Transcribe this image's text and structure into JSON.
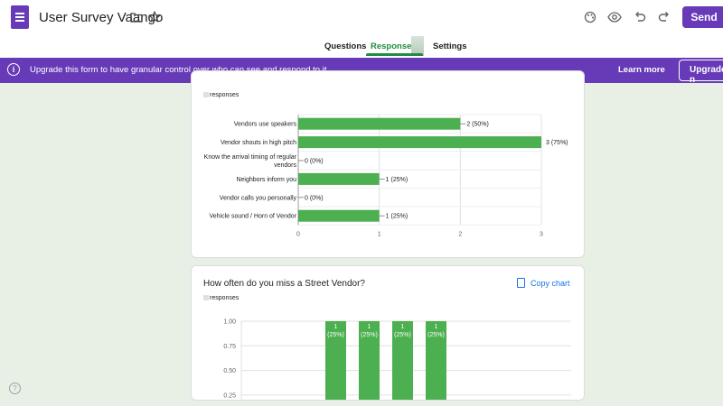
{
  "header": {
    "form_title": "User Survey Vaango",
    "send_label": "Send",
    "icons": [
      "forms-logo-icon",
      "folder-icon",
      "star-icon",
      "palette-icon",
      "preview-eye-icon",
      "undo-icon",
      "redo-icon"
    ]
  },
  "tabs": [
    {
      "label": "Questions",
      "active": false
    },
    {
      "label": "Responses",
      "active": true
    },
    {
      "label": "Settings",
      "active": false
    }
  ],
  "banner": {
    "text": "Upgrade this form to have granular control over who can see and respond to it",
    "learn_more": "Learn more",
    "upgrade": "Upgrade n"
  },
  "colors": {
    "accent": "#673ab7",
    "bar": "#4caf50",
    "link": "#1a73e8",
    "tab_active": "#1e8e3e"
  },
  "card1": {
    "responses_label": "responses"
  },
  "card2": {
    "title": "How often do you miss a Street Vendor?",
    "copy_chart": "Copy chart",
    "responses_label": "responses"
  },
  "chart_data": [
    {
      "type": "bar",
      "orientation": "horizontal",
      "categories": [
        "Vendors use speakers",
        "Vendor shouts in high pitch",
        "Know the arrival timing of regular vendors",
        "Neighbors inform you",
        "Vendor calls you personally",
        "Vehicle sound / Horn of Vendor"
      ],
      "category_lines": [
        [
          "Vendors use speakers"
        ],
        [
          "Vendor shouts in high pitch"
        ],
        [
          "Know the arrival timing of regular",
          "vendors"
        ],
        [
          "Neighbors inform you"
        ],
        [
          "Vendor calls you personally"
        ],
        [
          "Vehicle sound / Horn of Vendor"
        ]
      ],
      "values": [
        2,
        3,
        0,
        1,
        0,
        1
      ],
      "data_labels": [
        "2 (50%)",
        "3 (75%)",
        "0 (0%)",
        "1 (25%)",
        "0 (0%)",
        "1 (25%)"
      ],
      "xlim": [
        0,
        3
      ],
      "xticks": [
        "0",
        "1",
        "2",
        "3"
      ],
      "grid": true
    },
    {
      "type": "bar",
      "orientation": "vertical",
      "values": [
        1,
        1,
        1,
        1
      ],
      "data_labels": [
        [
          "1",
          "(25%)"
        ],
        [
          "1",
          "(25%)"
        ],
        [
          "1",
          "(25%)"
        ],
        [
          "1",
          "(25%)"
        ]
      ],
      "yticks": [
        "1.00",
        "0.75",
        "0.50",
        "0.25"
      ],
      "ylim": [
        0,
        1
      ],
      "grid": true
    }
  ]
}
